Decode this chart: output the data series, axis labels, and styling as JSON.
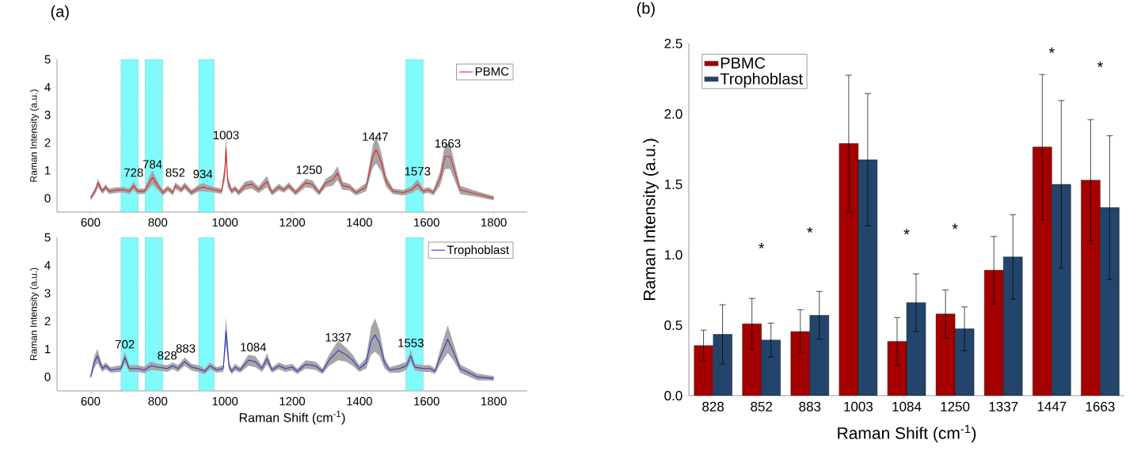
{
  "chart_data": [
    {
      "type": "line",
      "title": "(a)",
      "ylabel": "Raman Intensity (a.u.)",
      "xlim": [
        500,
        1900
      ],
      "xticks": [
        600,
        800,
        1000,
        1200,
        1400,
        1600,
        1800
      ],
      "ylim": [
        -0.5,
        5
      ],
      "yticks": [
        0,
        1,
        2,
        3,
        4,
        5
      ],
      "legend": "top right",
      "marker": "none",
      "line_style": "solid",
      "bands": [
        {
          "axis": "x",
          "from": 690,
          "to": 742,
          "color": "#80fafa"
        },
        {
          "axis": "x",
          "from": 762,
          "to": 815,
          "color": "#80fafa"
        },
        {
          "axis": "x",
          "from": 922,
          "to": 968,
          "color": "#80fafa"
        },
        {
          "axis": "x",
          "from": 1538,
          "to": 1590,
          "color": "#80fafa"
        }
      ],
      "annotations": [
        {
          "text": "728",
          "x": 728,
          "y": 0.45
        },
        {
          "text": "784",
          "x": 784,
          "y": 0.75
        },
        {
          "text": "852",
          "x": 852,
          "y": 0.45
        },
        {
          "text": "934",
          "x": 934,
          "y": 0.4
        },
        {
          "text": "1003",
          "x": 1003,
          "y": 1.8
        },
        {
          "text": "1250",
          "x": 1250,
          "y": 0.55
        },
        {
          "text": "1447",
          "x": 1447,
          "y": 1.75
        },
        {
          "text": "1573",
          "x": 1573,
          "y": 0.5
        },
        {
          "text": "1663",
          "x": 1663,
          "y": 1.5
        }
      ],
      "series": [
        {
          "name": "PBMC",
          "color": "#e32626",
          "x": [
            600,
            615,
            622,
            635,
            645,
            655,
            680,
            700,
            715,
            728,
            740,
            760,
            784,
            800,
            815,
            830,
            845,
            852,
            870,
            880,
            900,
            920,
            935,
            950,
            970,
            990,
            1000,
            1003,
            1008,
            1020,
            1030,
            1040,
            1060,
            1080,
            1100,
            1125,
            1140,
            1160,
            1175,
            1190,
            1210,
            1240,
            1260,
            1280,
            1300,
            1320,
            1335,
            1350,
            1370,
            1390,
            1420,
            1440,
            1450,
            1465,
            1480,
            1500,
            1530,
            1555,
            1573,
            1590,
            1605,
            1620,
            1640,
            1655,
            1670,
            1685,
            1700,
            1750,
            1800
          ],
          "values": [
            0,
            0.3,
            0.55,
            0.25,
            0.4,
            0.25,
            0.3,
            0.3,
            0.25,
            0.45,
            0.25,
            0.25,
            0.75,
            0.45,
            0.2,
            0.35,
            0.2,
            0.45,
            0.3,
            0.45,
            0.2,
            0.35,
            0.4,
            0.35,
            0.3,
            0.25,
            1.0,
            1.8,
            0.6,
            0.25,
            0.35,
            0.2,
            0.45,
            0.5,
            0.3,
            0.6,
            0.2,
            0.4,
            0.3,
            0.45,
            0.2,
            0.55,
            0.5,
            0.2,
            0.55,
            0.65,
            0.9,
            0.45,
            0.4,
            0.2,
            0.4,
            1.5,
            1.75,
            1.3,
            0.6,
            0.25,
            0.2,
            0.3,
            0.5,
            0.25,
            0.3,
            0.2,
            0.7,
            1.5,
            1.5,
            0.9,
            0.3,
            0.15,
            0
          ],
          "lower": [
            -0.08,
            0.18,
            0.4,
            0.15,
            0.3,
            0.15,
            0.2,
            0.2,
            0.15,
            0.3,
            0.15,
            0.15,
            0.5,
            0.3,
            0.1,
            0.25,
            0.1,
            0.33,
            0.2,
            0.33,
            0.1,
            0.23,
            0.25,
            0.23,
            0.2,
            0.15,
            0.7,
            1.3,
            0.4,
            0.15,
            0.25,
            0.1,
            0.3,
            0.35,
            0.18,
            0.4,
            0.1,
            0.28,
            0.2,
            0.33,
            0.1,
            0.4,
            0.35,
            0.1,
            0.4,
            0.45,
            0.65,
            0.3,
            0.28,
            0.1,
            0.25,
            1.1,
            1.25,
            0.95,
            0.4,
            0.15,
            0.1,
            0.18,
            0.32,
            0.15,
            0.2,
            0.1,
            0.45,
            1.05,
            1.05,
            0.6,
            0.15,
            0.05,
            -0.08
          ],
          "upper": [
            0.08,
            0.42,
            0.7,
            0.35,
            0.5,
            0.35,
            0.4,
            0.4,
            0.35,
            0.6,
            0.35,
            0.35,
            1.0,
            0.6,
            0.3,
            0.45,
            0.3,
            0.57,
            0.4,
            0.57,
            0.3,
            0.47,
            0.55,
            0.47,
            0.4,
            0.35,
            1.3,
            2.3,
            0.8,
            0.35,
            0.45,
            0.3,
            0.6,
            0.65,
            0.42,
            0.8,
            0.3,
            0.52,
            0.4,
            0.57,
            0.3,
            0.7,
            0.65,
            0.3,
            0.7,
            0.85,
            1.15,
            0.6,
            0.52,
            0.3,
            0.55,
            1.9,
            2.25,
            1.65,
            0.8,
            0.35,
            0.3,
            0.42,
            0.68,
            0.35,
            0.4,
            0.3,
            0.95,
            1.95,
            1.95,
            1.2,
            0.45,
            0.25,
            0.08
          ]
        }
      ]
    },
    {
      "type": "line",
      "xlabel": "Raman Shift (cm$^{-1}$)",
      "ylabel": "Raman Intensity (a.u.)",
      "xlim": [
        500,
        1900
      ],
      "xticks": [
        600,
        800,
        1000,
        1200,
        1400,
        1600,
        1800
      ],
      "ylim": [
        -0.5,
        5
      ],
      "yticks": [
        0,
        1,
        2,
        3,
        4,
        5
      ],
      "legend": "top right",
      "marker": "none",
      "line_style": "solid",
      "bands": [
        {
          "axis": "x",
          "from": 690,
          "to": 742,
          "color": "#80fafa"
        },
        {
          "axis": "x",
          "from": 762,
          "to": 815,
          "color": "#80fafa"
        },
        {
          "axis": "x",
          "from": 922,
          "to": 968,
          "color": "#80fafa"
        },
        {
          "axis": "x",
          "from": 1538,
          "to": 1590,
          "color": "#80fafa"
        }
      ],
      "annotations": [
        {
          "text": "702",
          "x": 702,
          "y": 0.7
        },
        {
          "text": "828",
          "x": 828,
          "y": 0.3
        },
        {
          "text": "883",
          "x": 883,
          "y": 0.55
        },
        {
          "text": "1084",
          "x": 1084,
          "y": 0.6
        },
        {
          "text": "1337",
          "x": 1337,
          "y": 0.95
        },
        {
          "text": "1553",
          "x": 1553,
          "y": 0.75
        }
      ],
      "series": [
        {
          "name": "Trophoblast",
          "color": "#3535c8",
          "x": [
            600,
            610,
            620,
            635,
            645,
            660,
            690,
            702,
            715,
            740,
            760,
            780,
            800,
            828,
            845,
            860,
            880,
            900,
            920,
            940,
            955,
            975,
            995,
            1003,
            1012,
            1020,
            1030,
            1045,
            1070,
            1090,
            1110,
            1125,
            1140,
            1160,
            1180,
            1200,
            1215,
            1240,
            1270,
            1290,
            1310,
            1337,
            1360,
            1380,
            1400,
            1420,
            1435,
            1447,
            1460,
            1475,
            1490,
            1520,
            1540,
            1553,
            1565,
            1590,
            1610,
            1625,
            1640,
            1663,
            1680,
            1700,
            1750,
            1800
          ],
          "values": [
            0,
            0.5,
            0.75,
            0.3,
            0.4,
            0.25,
            0.3,
            0.7,
            0.3,
            0.3,
            0.25,
            0.4,
            0.35,
            0.3,
            0.4,
            0.3,
            0.55,
            0.35,
            0.3,
            0.2,
            0.4,
            0.25,
            0.3,
            1.65,
            0.4,
            0.2,
            0.35,
            0.25,
            0.6,
            0.55,
            0.3,
            0.65,
            0.25,
            0.4,
            0.3,
            0.35,
            0.2,
            0.45,
            0.4,
            0.2,
            0.6,
            0.95,
            0.8,
            0.6,
            0.3,
            0.5,
            1.3,
            1.5,
            1.2,
            0.5,
            0.25,
            0.3,
            0.4,
            0.75,
            0.35,
            0.3,
            0.3,
            0.2,
            0.7,
            1.35,
            0.9,
            0.3,
            0,
            -0.05
          ],
          "lower": [
            -0.08,
            0.3,
            0.5,
            0.18,
            0.28,
            0.15,
            0.18,
            0.5,
            0.18,
            0.18,
            0.13,
            0.25,
            0.23,
            0.18,
            0.28,
            0.18,
            0.4,
            0.23,
            0.18,
            0.1,
            0.28,
            0.15,
            0.18,
            1.15,
            0.25,
            0.1,
            0.23,
            0.15,
            0.4,
            0.35,
            0.18,
            0.45,
            0.15,
            0.28,
            0.18,
            0.23,
            0.1,
            0.3,
            0.25,
            0.1,
            0.4,
            0.6,
            0.55,
            0.4,
            0.18,
            0.3,
            0.8,
            0.9,
            0.75,
            0.3,
            0.15,
            0.15,
            0.25,
            0.55,
            0.23,
            0.18,
            0.18,
            0.1,
            0.45,
            0.85,
            0.6,
            0.15,
            -0.12,
            -0.13
          ],
          "upper": [
            0.08,
            0.7,
            1.0,
            0.42,
            0.52,
            0.35,
            0.42,
            0.9,
            0.42,
            0.42,
            0.37,
            0.55,
            0.47,
            0.42,
            0.52,
            0.42,
            0.7,
            0.47,
            0.42,
            0.3,
            0.52,
            0.35,
            0.42,
            2.15,
            0.55,
            0.3,
            0.47,
            0.35,
            0.8,
            0.75,
            0.42,
            0.85,
            0.35,
            0.52,
            0.42,
            0.47,
            0.3,
            0.6,
            0.55,
            0.3,
            0.8,
            1.3,
            1.05,
            0.8,
            0.42,
            0.7,
            1.8,
            2.1,
            1.65,
            0.7,
            0.35,
            0.45,
            0.55,
            0.95,
            0.47,
            0.42,
            0.42,
            0.3,
            0.95,
            1.85,
            1.2,
            0.45,
            0.12,
            0.03
          ]
        }
      ]
    },
    {
      "type": "bar",
      "title": "(b)",
      "xlabel": "Raman Shift (cm$^{-1}$)",
      "ylabel": "Raman Intensity (a.u.)",
      "categories": [
        "828",
        "852",
        "883",
        "1003",
        "1084",
        "1250",
        "1337",
        "1447",
        "1663"
      ],
      "ylim": [
        0,
        2.5
      ],
      "yticks": [
        {
          "value": 0,
          "label": "0.0"
        },
        0.5,
        {
          "value": 1,
          "label": "1.0"
        },
        1.5,
        {
          "value": 2,
          "label": "2.0"
        },
        2.5
      ],
      "legend": "top left",
      "annotations": [
        "*",
        "*",
        "*",
        "*",
        "*",
        "*"
      ],
      "series": [
        {
          "name": "PBMC",
          "color": "#a50000",
          "values": [
            0.355,
            0.51,
            0.455,
            1.79,
            0.385,
            0.58,
            0.89,
            1.765,
            1.53
          ],
          "errors": [
            0.11,
            0.18,
            0.155,
            0.485,
            0.17,
            0.17,
            0.24,
            0.515,
            0.43
          ]
        },
        {
          "name": "Trophoblast",
          "color": "#23456b",
          "values": [
            0.435,
            0.395,
            0.57,
            1.675,
            0.66,
            0.475,
            0.985,
            1.5,
            1.335
          ],
          "errors": [
            0.21,
            0.12,
            0.17,
            0.47,
            0.205,
            0.155,
            0.3,
            0.595,
            0.51
          ]
        }
      ]
    }
  ]
}
